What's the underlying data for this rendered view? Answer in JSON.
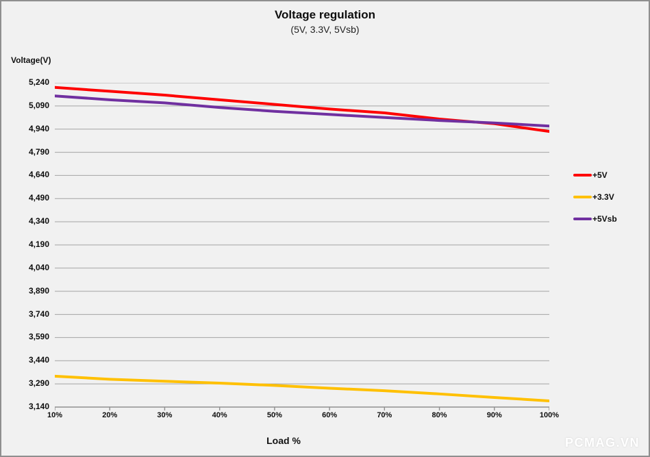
{
  "window": {
    "background": "#f1f1f1",
    "border_color": "#8f8f8f"
  },
  "header": {
    "title": "Voltage regulation",
    "subtitle": "(5V, 3.3V, 5Vsb)"
  },
  "watermark": "PCMAG.VN",
  "chart_data": {
    "type": "line",
    "title": "Voltage regulation",
    "subtitle": "(5V, 3.3V, 5Vsb)",
    "xlabel": "Load %",
    "ylabel": "Voltage(V)",
    "categories": [
      "10%",
      "20%",
      "30%",
      "40%",
      "50%",
      "60%",
      "70%",
      "80%",
      "90%",
      "100%"
    ],
    "y_ticks": [
      5240,
      5090,
      4940,
      4790,
      4640,
      4490,
      4340,
      4190,
      4040,
      3890,
      3740,
      3590,
      3440,
      3290,
      3140
    ],
    "y_tick_labels": [
      "5,240",
      "5,090",
      "4,940",
      "4,790",
      "4,640",
      "4,490",
      "4,340",
      "4,190",
      "4,040",
      "3,890",
      "3,740",
      "3,590",
      "3,440",
      "3,290",
      "3,140"
    ],
    "ylim": [
      3140,
      5240
    ],
    "grid": "horizontal",
    "legend_position": "right",
    "series": [
      {
        "name": "+5V",
        "color": "#fe0000",
        "values": [
          5210,
          5185,
          5160,
          5130,
          5100,
          5070,
          5045,
          5005,
          4975,
          4925
        ]
      },
      {
        "name": "+3.3V",
        "color": "#ffc000",
        "values": [
          3340,
          3320,
          3307,
          3295,
          3280,
          3262,
          3246,
          3225,
          3202,
          3180
        ]
      },
      {
        "name": "+5Vsb",
        "color": "#7030a0",
        "values": [
          5155,
          5130,
          5110,
          5080,
          5055,
          5035,
          5015,
          4996,
          4980,
          4960
        ]
      }
    ],
    "colors": {
      "gridline": "#a3a3a3",
      "axis": "#8f8f8f",
      "text": "#111111"
    }
  }
}
